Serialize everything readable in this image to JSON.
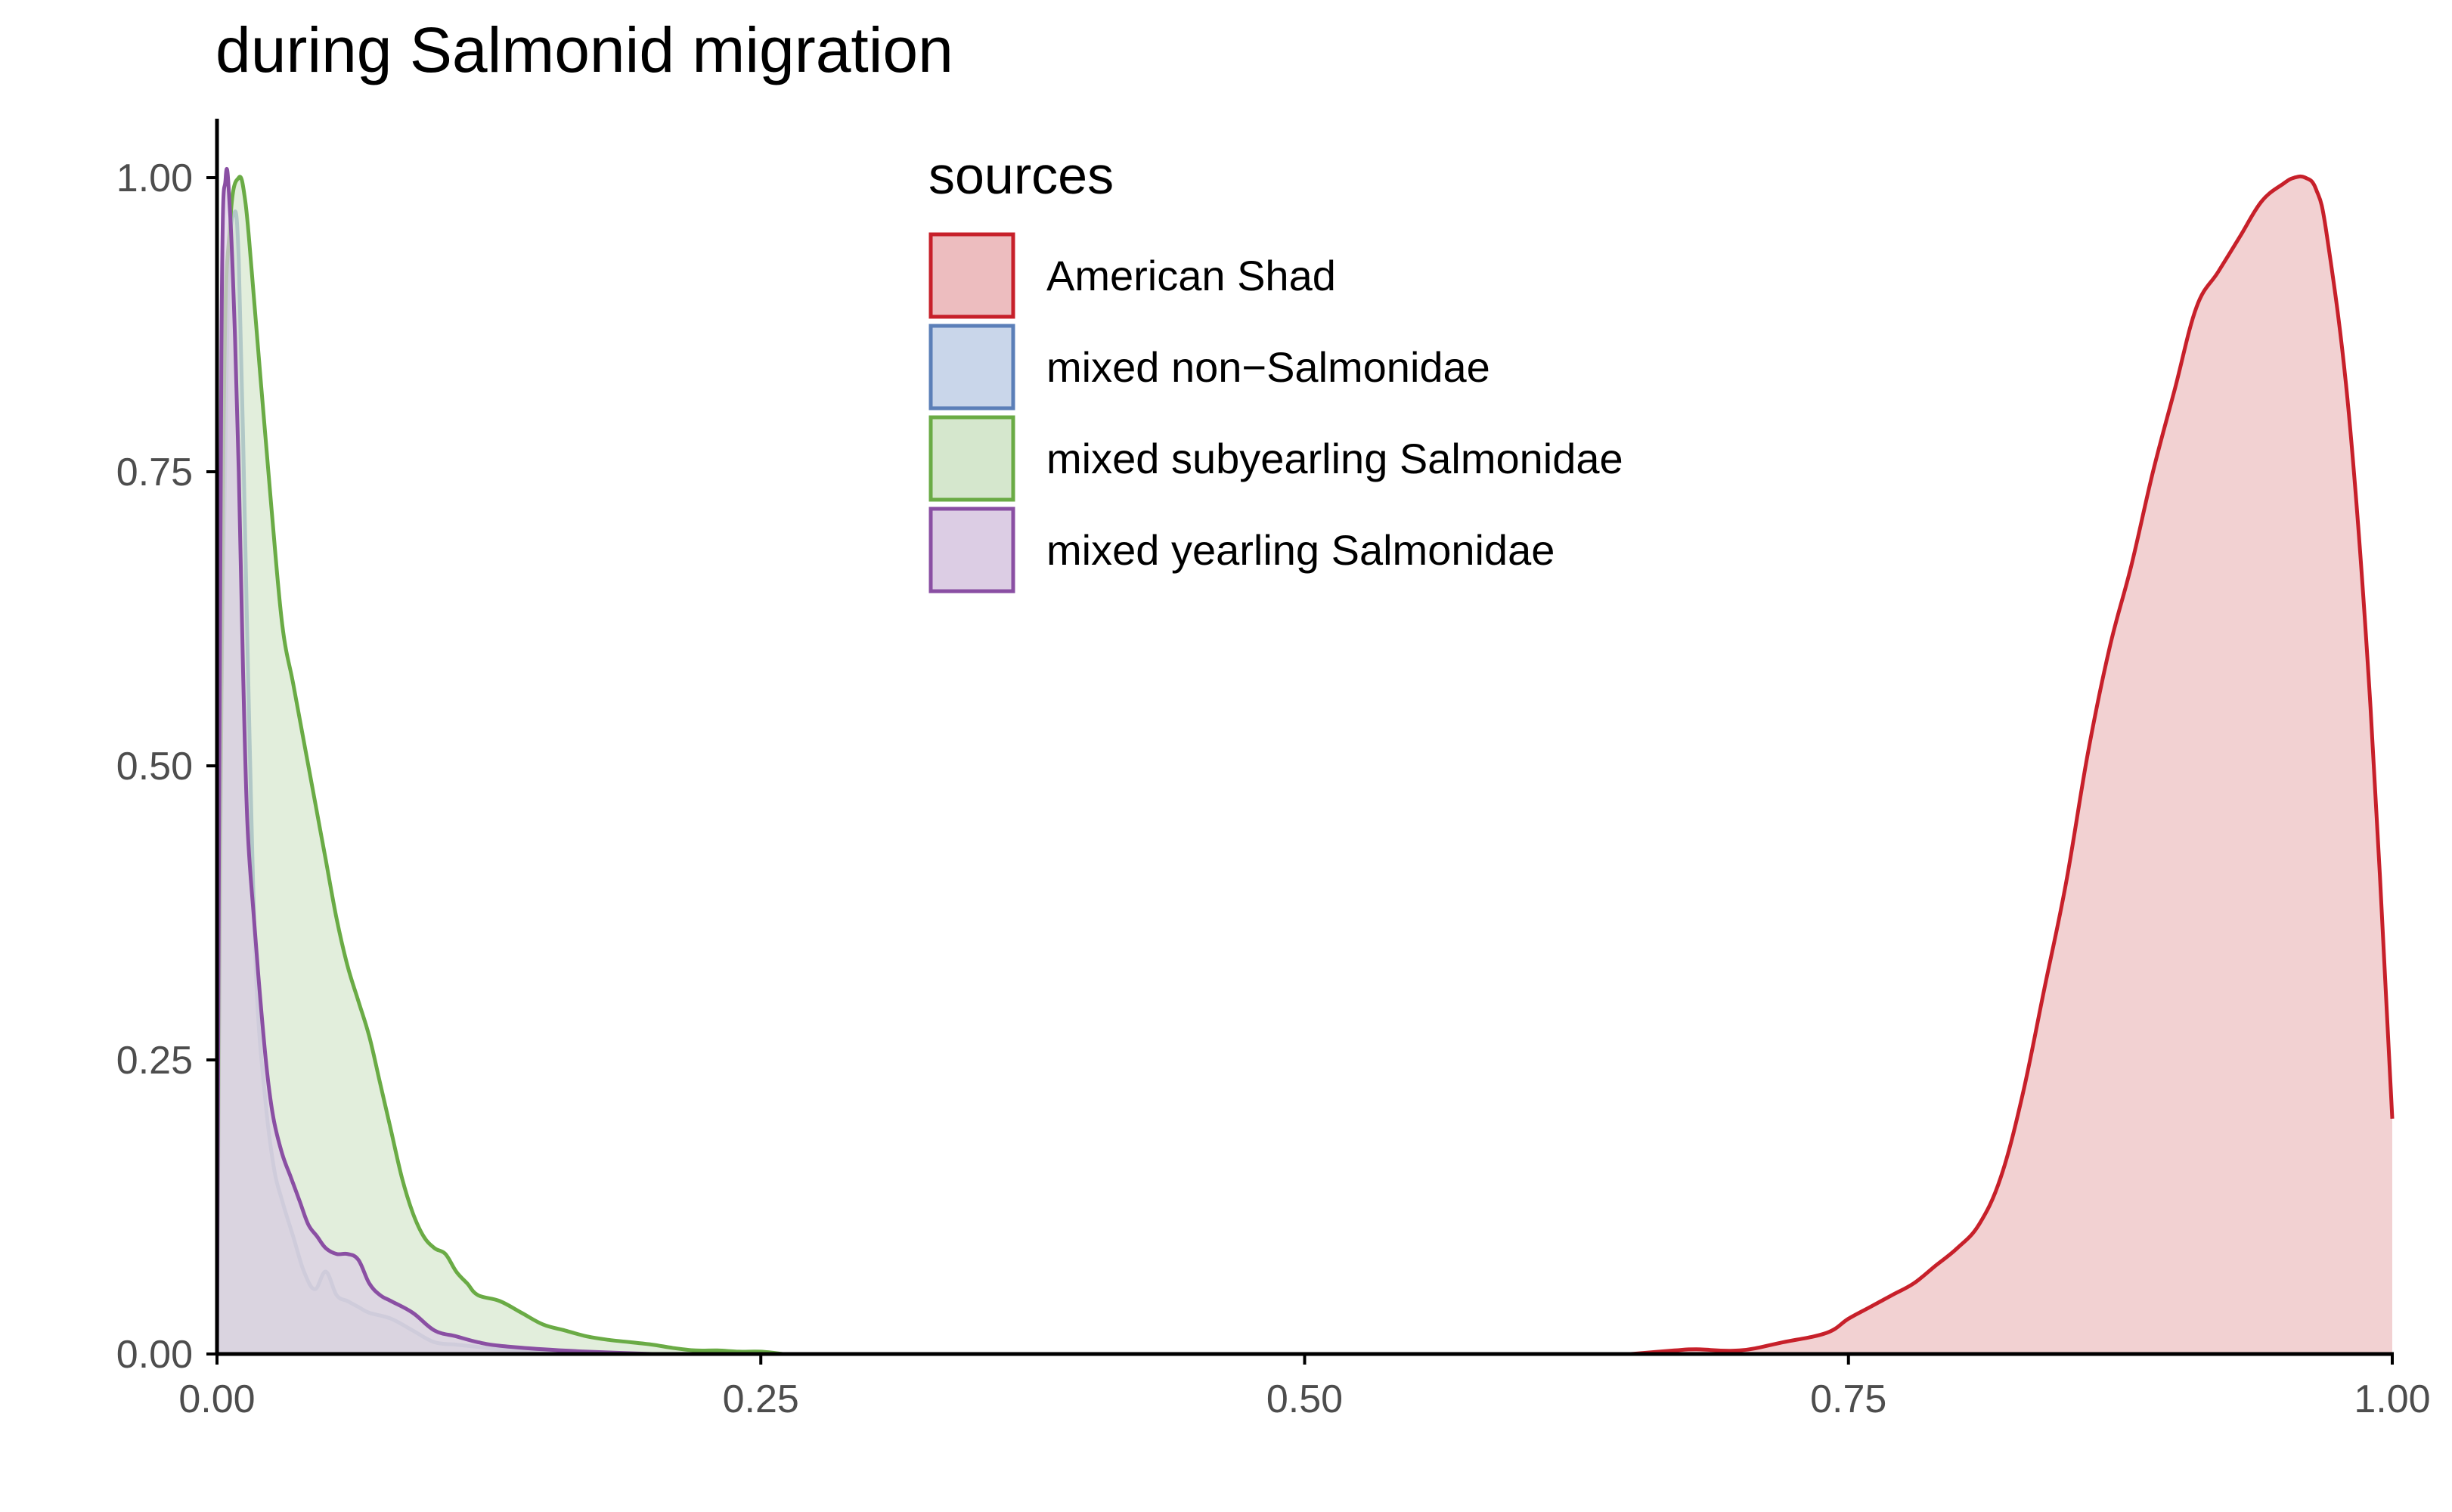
{
  "chart_data": {
    "type": "area",
    "title": "during Salmonid migration",
    "xlabel": "",
    "ylabel": "",
    "xlim": [
      0,
      1
    ],
    "ylim": [
      0,
      1
    ],
    "x_ticks": [
      "0.00",
      "0.25",
      "0.50",
      "0.75",
      "1.00"
    ],
    "y_ticks": [
      "0.00",
      "0.25",
      "0.50",
      "0.75",
      "1.00"
    ],
    "grid": false,
    "legend": {
      "title": "sources",
      "position": "top-center"
    },
    "series": [
      {
        "name": "American Shad",
        "stroke": "#c7202a",
        "fill": "#edbdbf",
        "x": [
          0.65,
          0.67,
          0.68,
          0.7,
          0.72,
          0.74,
          0.75,
          0.76,
          0.77,
          0.78,
          0.79,
          0.8,
          0.81,
          0.82,
          0.83,
          0.84,
          0.85,
          0.86,
          0.87,
          0.88,
          0.89,
          0.9,
          0.91,
          0.92,
          0.93,
          0.94,
          0.95,
          0.955,
          0.96,
          0.965,
          0.97,
          0.98,
          0.99,
          1.0
        ],
        "y": [
          0.0,
          0.003,
          0.004,
          0.003,
          0.01,
          0.018,
          0.03,
          0.04,
          0.05,
          0.06,
          0.075,
          0.09,
          0.11,
          0.15,
          0.22,
          0.31,
          0.4,
          0.51,
          0.6,
          0.67,
          0.75,
          0.82,
          0.89,
          0.92,
          0.95,
          0.98,
          0.995,
          1.0,
          1.0,
          0.99,
          0.95,
          0.8,
          0.55,
          0.2
        ]
      },
      {
        "name": "mixed non−Salmonidae",
        "stroke": "#5b7fb8",
        "fill": "#c9d6ea",
        "x": [
          0.0,
          0.002,
          0.005,
          0.008,
          0.01,
          0.012,
          0.015,
          0.018,
          0.022,
          0.026,
          0.03,
          0.035,
          0.04,
          0.045,
          0.05,
          0.055,
          0.06,
          0.065,
          0.07,
          0.08,
          0.09,
          0.1,
          0.11,
          0.12,
          0.13,
          0.15,
          0.17,
          0.2
        ],
        "y": [
          0.0,
          0.55,
          0.9,
          0.97,
          0.93,
          0.78,
          0.52,
          0.32,
          0.22,
          0.16,
          0.13,
          0.1,
          0.07,
          0.055,
          0.07,
          0.05,
          0.045,
          0.04,
          0.035,
          0.03,
          0.02,
          0.01,
          0.008,
          0.006,
          0.004,
          0.003,
          0.001,
          0.0
        ]
      },
      {
        "name": "mixed subyearling Salmonidae",
        "stroke": "#6aab45",
        "fill": "#d5e7cd",
        "x": [
          0.0,
          0.003,
          0.006,
          0.01,
          0.013,
          0.016,
          0.02,
          0.025,
          0.03,
          0.035,
          0.04,
          0.045,
          0.05,
          0.055,
          0.06,
          0.065,
          0.07,
          0.075,
          0.08,
          0.085,
          0.09,
          0.095,
          0.1,
          0.105,
          0.11,
          0.115,
          0.12,
          0.13,
          0.14,
          0.15,
          0.16,
          0.17,
          0.18,
          0.19,
          0.2,
          0.21,
          0.22,
          0.23,
          0.24,
          0.25,
          0.26
        ],
        "y": [
          0.0,
          0.78,
          0.96,
          1.0,
          0.98,
          0.92,
          0.83,
          0.72,
          0.62,
          0.57,
          0.52,
          0.47,
          0.42,
          0.37,
          0.33,
          0.3,
          0.27,
          0.23,
          0.19,
          0.15,
          0.12,
          0.1,
          0.09,
          0.085,
          0.07,
          0.06,
          0.05,
          0.045,
          0.035,
          0.025,
          0.02,
          0.015,
          0.012,
          0.01,
          0.008,
          0.005,
          0.003,
          0.003,
          0.002,
          0.002,
          0.0
        ]
      },
      {
        "name": "mixed yearling Salmonidae",
        "stroke": "#8a4fa3",
        "fill": "#dccde4",
        "x": [
          0.0,
          0.002,
          0.004,
          0.006,
          0.008,
          0.01,
          0.012,
          0.014,
          0.017,
          0.02,
          0.023,
          0.026,
          0.03,
          0.034,
          0.038,
          0.042,
          0.046,
          0.05,
          0.055,
          0.06,
          0.065,
          0.07,
          0.075,
          0.08,
          0.09,
          0.1,
          0.11,
          0.12,
          0.13,
          0.15,
          0.17,
          0.2
        ],
        "y": [
          0.0,
          0.85,
          1.0,
          0.97,
          0.88,
          0.75,
          0.58,
          0.45,
          0.37,
          0.3,
          0.24,
          0.2,
          0.17,
          0.15,
          0.13,
          0.11,
          0.1,
          0.09,
          0.085,
          0.085,
          0.08,
          0.06,
          0.05,
          0.045,
          0.035,
          0.02,
          0.015,
          0.01,
          0.007,
          0.004,
          0.002,
          0.0
        ]
      }
    ]
  }
}
